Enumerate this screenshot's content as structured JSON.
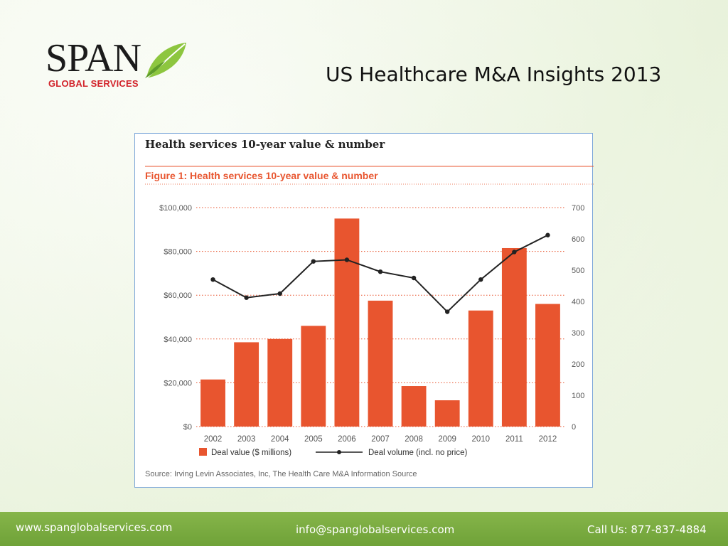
{
  "logo": {
    "word": "SPAN",
    "sub": "GLOBAL SERVICES"
  },
  "slide_title": "US Healthcare M&A Insights 2013",
  "footer": {
    "website": "www.spanglobalservices.com",
    "email": "info@spanglobalservices.com",
    "phone": "Call Us: 877-837-4884"
  },
  "chart_data": {
    "type": "bar",
    "header": "Health services 10-year value & number",
    "title": "Figure 1: Health services 10-year value & number",
    "categories": [
      "2002",
      "2003",
      "2004",
      "2005",
      "2006",
      "2007",
      "2008",
      "2009",
      "2010",
      "2011",
      "2012"
    ],
    "series": [
      {
        "name": "Deal value ($ millions)",
        "type": "bar",
        "axis": "left",
        "values": [
          21500,
          38500,
          40000,
          46000,
          95000,
          57500,
          18500,
          12000,
          53000,
          81500,
          56000
        ]
      },
      {
        "name": "Deal volume (incl. no price)",
        "type": "line",
        "axis": "right",
        "values": [
          470,
          412,
          425,
          528,
          533,
          495,
          475,
          367,
          470,
          558,
          612
        ]
      }
    ],
    "left_axis": {
      "ylim": [
        0,
        100000
      ],
      "ticks": [
        "$0",
        "$20,000",
        "$40,000",
        "$60,000",
        "$80,000",
        "$100,000"
      ]
    },
    "right_axis": {
      "ylim": [
        0,
        700
      ],
      "ticks": [
        "0",
        "100",
        "200",
        "300",
        "400",
        "500",
        "600",
        "700"
      ]
    },
    "legend_position": "bottom-left",
    "source": "Source: Irving Levin Associates, Inc, The Health Care M&A Information Source",
    "colors": {
      "bar": "#e8552f",
      "line": "#222222",
      "accent": "#e8552f",
      "grid": "#e8552f"
    },
    "grid": true
  }
}
